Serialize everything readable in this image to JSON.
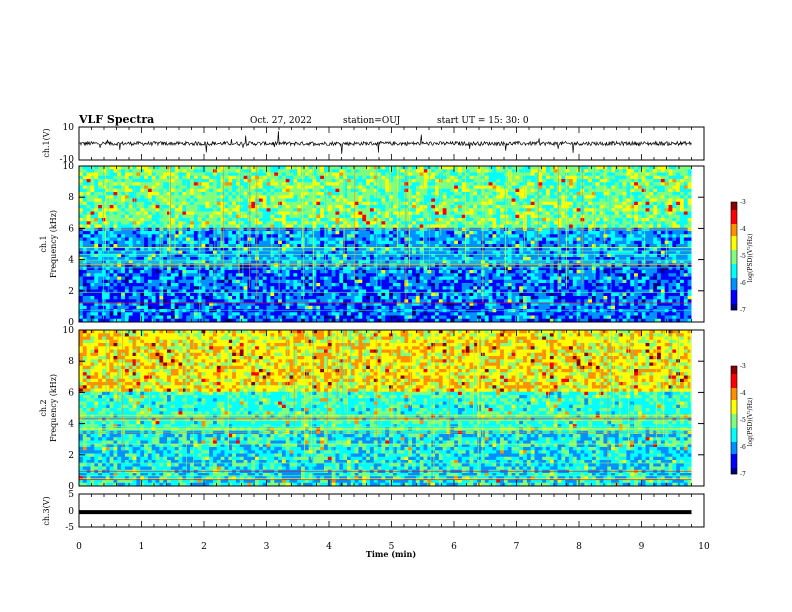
{
  "header": {
    "title": "VLF Spectra",
    "date": "Oct. 27, 2022",
    "station": "station=OUJ",
    "start": "start  UT =   15: 30: 0"
  },
  "colors": {
    "colormap": [
      "#00007f",
      "#0000ff",
      "#0090ff",
      "#00ffff",
      "#7fff7f",
      "#ffff00",
      "#ff9000",
      "#ff0000",
      "#8b0000"
    ],
    "axis": "#000000",
    "background": "#ffffff"
  },
  "chart_data": [
    {
      "type": "line",
      "panel": "ch1-waveform",
      "ylabel": "ch.1(V)",
      "ylim": [
        -10,
        10
      ],
      "yticks": [
        "10",
        "-10"
      ],
      "xlim": [
        0,
        10
      ],
      "note_values": "continuous noise-like waveform around 0 V with occasional spikes"
    },
    {
      "type": "heatmap",
      "panel": "ch1-spectrogram",
      "ylabel": "Frequency (kHz)",
      "ylabel_prefix": "ch.1",
      "ylim": [
        0,
        10
      ],
      "yticks": [
        "0",
        "2",
        "4",
        "6",
        "8",
        "10"
      ],
      "xlim": [
        0,
        10
      ],
      "colorbar": {
        "label": "log(PSD)(V²/Hz)",
        "ticks": [
          "-3",
          "-4",
          "-5",
          "-6",
          "-7"
        ],
        "range": [
          -7,
          -3
        ]
      }
    },
    {
      "type": "heatmap",
      "panel": "ch2-spectrogram",
      "ylabel": "Frequency (kHz)",
      "ylabel_prefix": "ch.2",
      "ylim": [
        0,
        10
      ],
      "yticks": [
        "0",
        "2",
        "4",
        "6",
        "8",
        "10"
      ],
      "xlim": [
        0,
        10
      ],
      "colorbar": {
        "label": "log(PSD)(V²/Hz)",
        "ticks": [
          "-3",
          "-4",
          "-5",
          "-6",
          "-7"
        ],
        "range": [
          -7,
          -3
        ]
      }
    },
    {
      "type": "line",
      "panel": "ch3-waveform",
      "ylabel": "ch.3(V)",
      "ylim": [
        -5,
        5
      ],
      "yticks": [
        "5",
        "0",
        "-5"
      ],
      "xlim": [
        0,
        10
      ],
      "x": [
        0,
        9.8
      ],
      "y": [
        -0.5,
        -0.5
      ]
    }
  ],
  "xaxis": {
    "label": "Time (min)",
    "ticks": [
      "0",
      "1",
      "2",
      "3",
      "4",
      "5",
      "6",
      "7",
      "8",
      "9",
      "10"
    ]
  }
}
